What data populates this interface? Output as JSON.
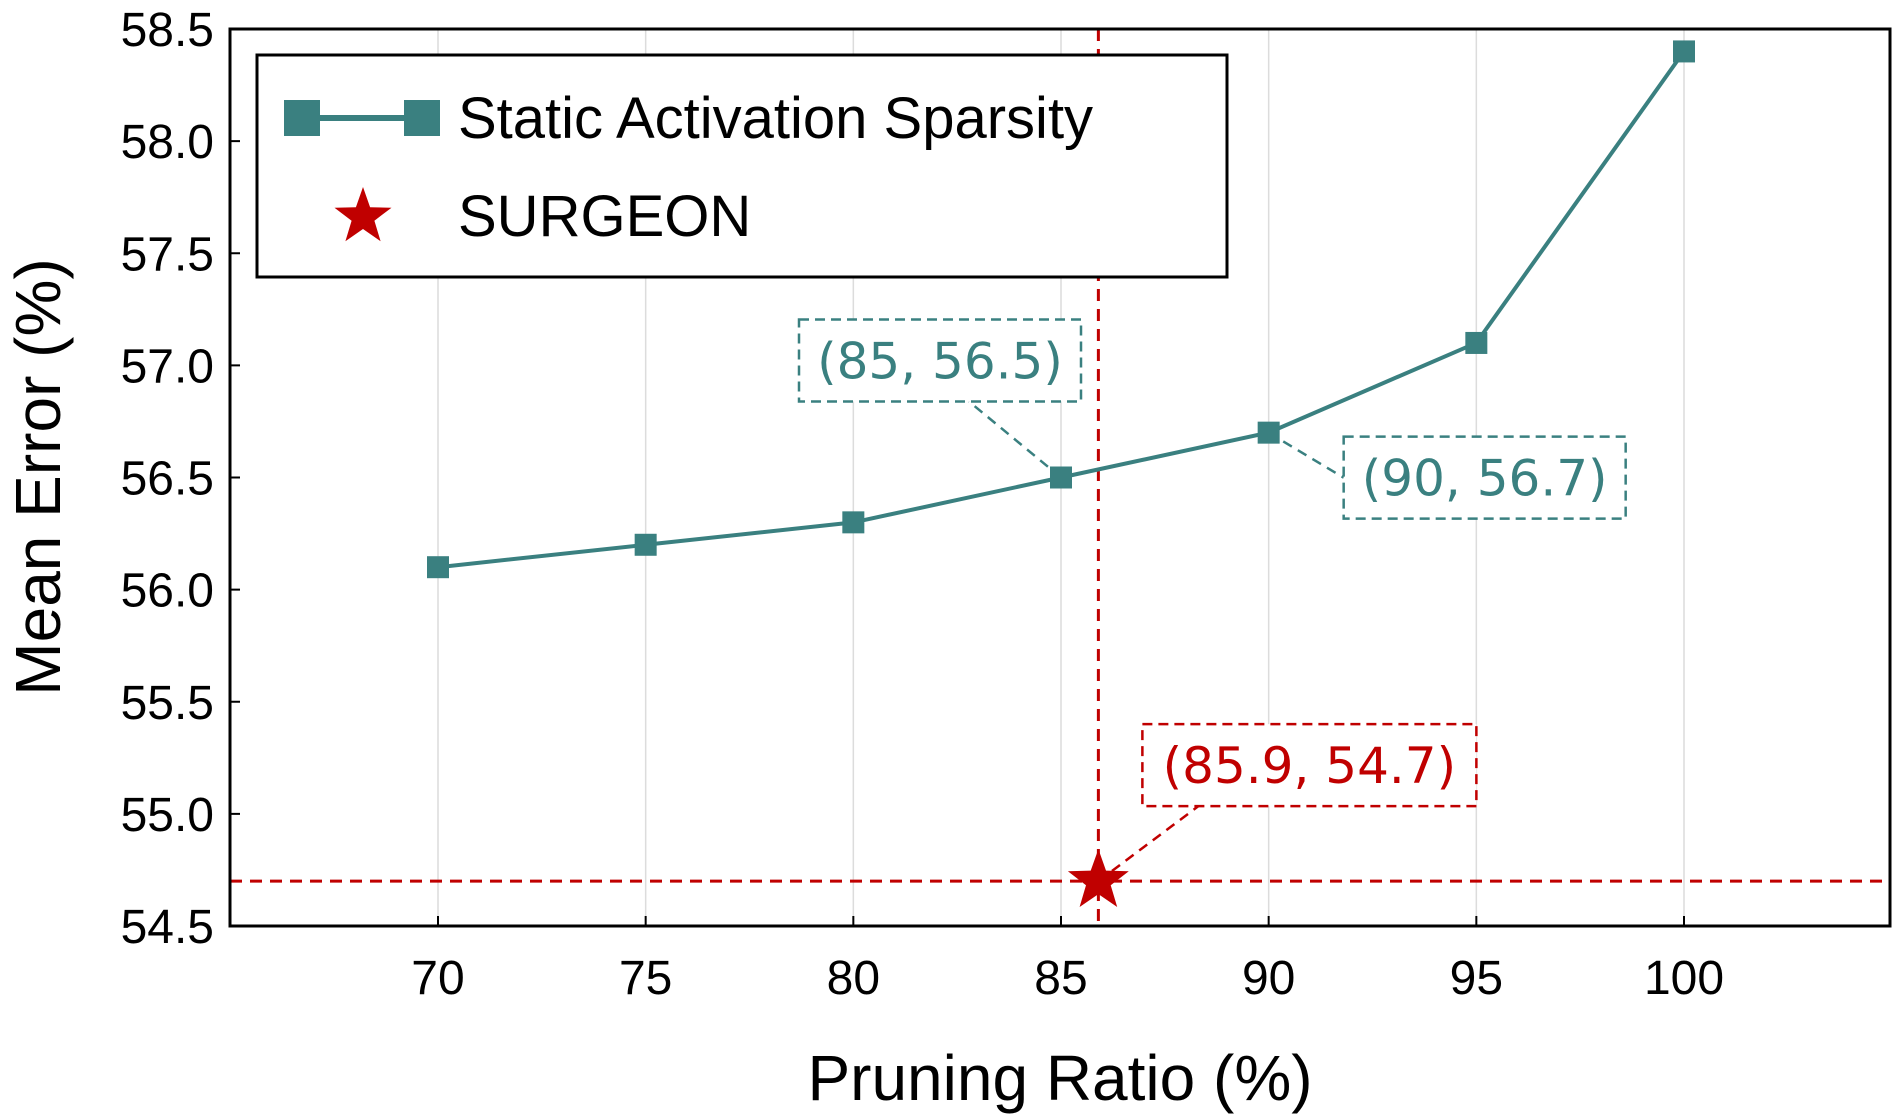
{
  "chart_data": {
    "type": "line",
    "title": "",
    "xlabel": "Pruning Ratio (%)",
    "ylabel": "Mean Error (%)",
    "xlim": [
      65,
      105
    ],
    "ylim": [
      54.5,
      58.5
    ],
    "xticks": [
      70,
      75,
      80,
      85,
      90,
      95,
      100
    ],
    "xtick_labels": [
      "70",
      "75",
      "80",
      "85",
      "90",
      "95",
      "100"
    ],
    "yticks": [
      54.5,
      55.0,
      55.5,
      56.0,
      56.5,
      57.0,
      57.5,
      58.0,
      58.5
    ],
    "ytick_labels": [
      "54.5",
      "55.0",
      "55.5",
      "56.0",
      "56.5",
      "57.0",
      "57.5",
      "58.0",
      "58.5"
    ],
    "grid": "vertical",
    "legend_position": "top-left",
    "series": [
      {
        "name": "Static Activation Sparsity",
        "marker": "square",
        "color": "#3a8080",
        "x": [
          70,
          75,
          80,
          85,
          90,
          95,
          100
        ],
        "values": [
          56.1,
          56.2,
          56.3,
          56.5,
          56.7,
          57.1,
          58.4
        ]
      },
      {
        "name": "SURGEON",
        "marker": "star",
        "color": "#c00000",
        "x": [
          85.9
        ],
        "values": [
          54.7
        ]
      }
    ],
    "reference_lines": [
      {
        "orientation": "vertical",
        "value": 85.9,
        "color": "#c00000",
        "style": "dashed"
      },
      {
        "orientation": "horizontal",
        "value": 54.7,
        "color": "#c00000",
        "style": "dashed"
      }
    ],
    "annotations": [
      {
        "text": "(85, 56.5)",
        "x": 85,
        "y": 56.5,
        "color": "#3a8080"
      },
      {
        "text": "(90, 56.7)",
        "x": 90,
        "y": 56.7,
        "color": "#3a8080"
      },
      {
        "text": "(85.9, 54.7)",
        "x": 85.9,
        "y": 54.7,
        "color": "#c00000"
      }
    ]
  }
}
